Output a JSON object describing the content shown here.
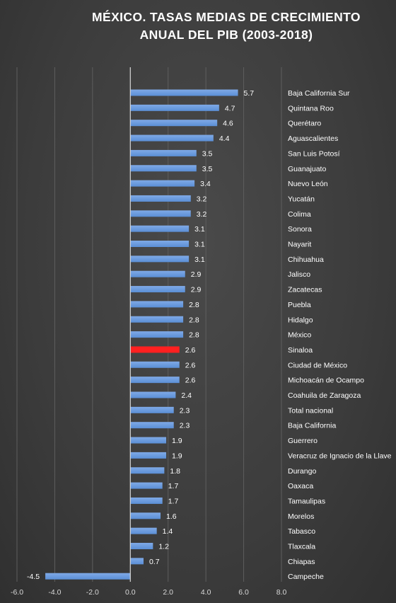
{
  "chart_data": {
    "type": "bar",
    "orientation": "horizontal",
    "title_lines": [
      "MÉXICO. TASAS MEDIAS DE CRECIMIENTO",
      "ANUAL DEL PIB (2003-2018)"
    ],
    "categories": [
      "Baja California Sur",
      "Quintana Roo",
      "Querétaro",
      "Aguascalientes",
      "San Luis Potosí",
      "Guanajuato",
      "Nuevo León",
      "Yucatán",
      "Colima",
      "Sonora",
      "Nayarit",
      "Chihuahua",
      "Jalisco",
      "Zacatecas",
      "Puebla",
      "Hidalgo",
      "México",
      "Sinaloa",
      "Ciudad de México",
      "Michoacán de Ocampo",
      "Coahuila de Zaragoza",
      "Total nacional",
      "Baja California",
      "Guerrero",
      "Veracruz de Ignacio de la Llave",
      "Durango",
      "Oaxaca",
      "Tamaulipas",
      "Morelos",
      "Tabasco",
      "Tlaxcala",
      "Chiapas",
      "Campeche"
    ],
    "values": [
      5.7,
      4.7,
      4.6,
      4.4,
      3.5,
      3.5,
      3.4,
      3.2,
      3.2,
      3.1,
      3.1,
      3.1,
      2.9,
      2.9,
      2.8,
      2.8,
      2.8,
      2.6,
      2.6,
      2.6,
      2.4,
      2.3,
      2.3,
      1.9,
      1.9,
      1.8,
      1.7,
      1.7,
      1.6,
      1.4,
      1.2,
      0.7,
      -4.5
    ],
    "data_labels": [
      "5.7",
      "4.7",
      "4.6",
      "4.4",
      "3.5",
      "3.5",
      "3.4",
      "3.2",
      "3.2",
      "3.1",
      "3.1",
      "3.1",
      "2.9",
      "2.9",
      "2.8",
      "2.8",
      "2.8",
      "2.6",
      "2.6",
      "2.6",
      "2.4",
      "2.3",
      "2.3",
      "1.9",
      "1.9",
      "1.8",
      "1.7",
      "1.7",
      "1.6",
      "1.4",
      "1.2",
      "0.7",
      "-4.5"
    ],
    "highlight_category": "Sinaloa",
    "xlim": [
      -6,
      8
    ],
    "xticks": [
      -6,
      -4,
      -2,
      0,
      2,
      4,
      6,
      8
    ],
    "xtick_labels": [
      "-6.0",
      "-4.0",
      "-2.0",
      "0.0",
      "2.0",
      "4.0",
      "6.0",
      "8.0"
    ],
    "xlabel": "",
    "ylabel": "",
    "grid": "vertical",
    "legend": "none",
    "colors": {
      "bar": "#5b8fd6",
      "bar_top": "#7fa9e6",
      "highlight": "#ff2020",
      "grid": "#5e5e5e",
      "zero_line": "#d9d9d9",
      "text": "#ffffff",
      "background": "#3c3c3c"
    }
  }
}
